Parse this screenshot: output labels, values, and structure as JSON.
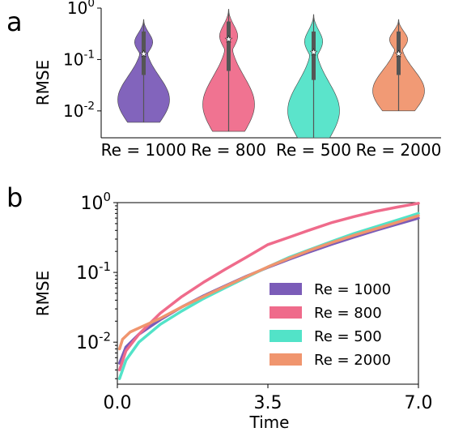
{
  "colors": {
    "Re = 1000": "#7b5cb8",
    "Re = 800": "#ef6b8b",
    "Re = 500": "#52e3c8",
    "Re = 2000": "#f0956e"
  },
  "chart_data": [
    {
      "panel_label": "a",
      "type": "violin",
      "ylabel": "RMSE",
      "yscale": "log",
      "ylim": [
        0.003,
        1.0
      ],
      "ytick_exponents": [
        "0",
        "-1",
        "-2"
      ],
      "categories": [
        "Re = 1000",
        "Re = 800",
        "Re = 500",
        "Re = 2000"
      ],
      "violins": [
        {
          "name": "Re = 1000",
          "min": 0.006,
          "q1": 0.05,
          "median": 0.13,
          "q3": 0.35,
          "max": 0.6,
          "mean": 0.13
        },
        {
          "name": "Re = 800",
          "min": 0.004,
          "q1": 0.06,
          "median": 0.25,
          "q3": 0.55,
          "max": 0.95,
          "mean": 0.27
        },
        {
          "name": "Re = 500",
          "min": 0.003,
          "q1": 0.04,
          "median": 0.14,
          "q3": 0.35,
          "max": 0.75,
          "mean": 0.14
        },
        {
          "name": "Re = 2000",
          "min": 0.01,
          "q1": 0.05,
          "median": 0.13,
          "q3": 0.35,
          "max": 0.6,
          "mean": 0.13
        }
      ]
    },
    {
      "panel_label": "b",
      "type": "line",
      "xlabel": "Time",
      "ylabel": "RMSE",
      "yscale": "log",
      "xlim": [
        0.0,
        7.0
      ],
      "ylim": [
        0.0025,
        1.0
      ],
      "xticks": [
        "0.0",
        "3.5",
        "7.0"
      ],
      "ytick_exponents": [
        "0",
        "-1",
        "-2"
      ],
      "legend_position": "lower-right",
      "series": [
        {
          "name": "Re = 1000",
          "x": [
            0.05,
            0.2,
            0.5,
            1.0,
            1.5,
            2.0,
            2.5,
            3.0,
            3.5,
            4.0,
            4.5,
            5.0,
            5.5,
            6.0,
            6.5,
            7.0
          ],
          "y": [
            0.005,
            0.0085,
            0.013,
            0.021,
            0.032,
            0.046,
            0.064,
            0.088,
            0.118,
            0.155,
            0.2,
            0.255,
            0.32,
            0.4,
            0.49,
            0.6
          ]
        },
        {
          "name": "Re = 800",
          "x": [
            0.05,
            0.2,
            0.5,
            1.0,
            1.5,
            2.0,
            2.5,
            3.0,
            3.5,
            4.0,
            4.5,
            5.0,
            5.5,
            6.0,
            6.5,
            7.0
          ],
          "y": [
            0.004,
            0.0075,
            0.013,
            0.026,
            0.045,
            0.072,
            0.11,
            0.165,
            0.25,
            0.32,
            0.41,
            0.52,
            0.63,
            0.75,
            0.86,
            0.98
          ]
        },
        {
          "name": "Re = 500",
          "x": [
            0.05,
            0.2,
            0.5,
            1.0,
            1.5,
            2.0,
            2.5,
            3.0,
            3.5,
            4.0,
            4.5,
            5.0,
            5.5,
            6.0,
            6.5,
            7.0
          ],
          "y": [
            0.003,
            0.0055,
            0.01,
            0.018,
            0.028,
            0.042,
            0.06,
            0.085,
            0.12,
            0.165,
            0.215,
            0.28,
            0.36,
            0.45,
            0.56,
            0.7
          ]
        },
        {
          "name": "Re = 2000",
          "x": [
            0.05,
            0.12,
            0.3,
            0.6,
            1.0,
            1.5,
            2.0,
            2.5,
            3.0,
            3.5,
            4.0,
            4.5,
            5.0,
            5.5,
            6.0,
            6.5,
            7.0
          ],
          "y": [
            0.008,
            0.011,
            0.014,
            0.017,
            0.022,
            0.032,
            0.045,
            0.063,
            0.087,
            0.12,
            0.16,
            0.21,
            0.27,
            0.34,
            0.42,
            0.52,
            0.65
          ]
        }
      ]
    }
  ]
}
